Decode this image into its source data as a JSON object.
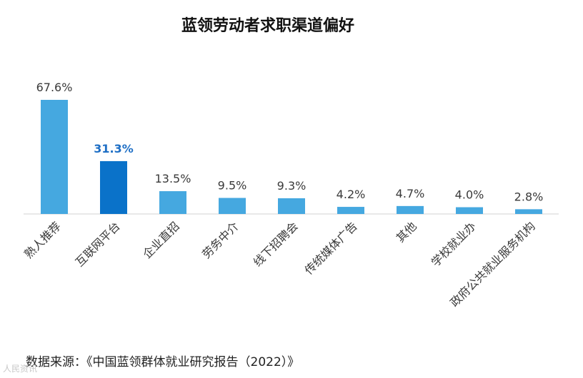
{
  "chart_data": {
    "type": "bar",
    "title": "蓝领劳动者求职渠道偏好",
    "categories": [
      "熟人推荐",
      "互联网平台",
      "企业直招",
      "劳务中介",
      "线下招聘会",
      "传统媒体广告",
      "其他",
      "学校就业办",
      "政府公共就业服务机构"
    ],
    "values": [
      67.6,
      31.3,
      13.5,
      9.5,
      9.3,
      4.2,
      4.7,
      4.0,
      2.8
    ],
    "value_labels": [
      "67.6%",
      "31.3%",
      "13.5%",
      "9.5%",
      "9.3%",
      "4.2%",
      "4.7%",
      "4.0%",
      "2.8%"
    ],
    "highlight_index": 1,
    "ylim": [
      0,
      70
    ],
    "xlabel": "",
    "ylabel": "",
    "grid": false,
    "colors": {
      "bar": "#45a8e0",
      "highlight": "#0a72c9",
      "highlight_label": "#1f6fc5",
      "axis": "#d0d0d0"
    }
  },
  "source": "数据来源：《中国蓝领群体就业研究报告（2022）》",
  "watermark": "人民资讯"
}
